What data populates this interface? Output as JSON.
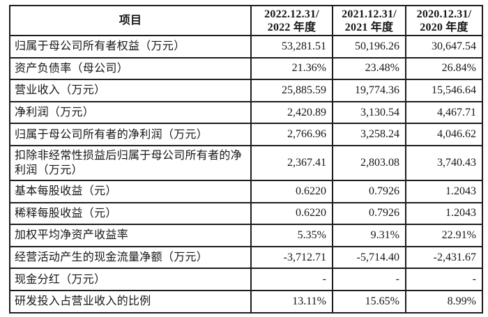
{
  "table": {
    "colors": {
      "border": "#1c1c1c",
      "text": "#161616",
      "background": "#ffffff"
    },
    "header": {
      "item_label": "项目",
      "periods": [
        {
          "line1": "2022.12.31/",
          "line2": "2022 年度"
        },
        {
          "line1": "2021.12.31/",
          "line2": "2021 年度"
        },
        {
          "line1": "2020.12.31/",
          "line2": "2020 年度"
        }
      ]
    },
    "rows": [
      {
        "label": "归属于母公司所有者权益（万元）",
        "values": [
          "53,281.51",
          "50,196.26",
          "30,647.54"
        ]
      },
      {
        "label": "资产负债率（母公司）",
        "values": [
          "21.36%",
          "23.48%",
          "26.84%"
        ]
      },
      {
        "label": "营业收入（万元）",
        "values": [
          "25,885.59",
          "19,774.36",
          "15,546.64"
        ]
      },
      {
        "label": "净利润（万元）",
        "values": [
          "2,420.89",
          "3,130.54",
          "4,467.71"
        ]
      },
      {
        "label": "归属于母公司所有者的净利润（万元）",
        "values": [
          "2,766.96",
          "3,258.24",
          "4,046.62"
        ]
      },
      {
        "label": "扣除非经常性损益后归属于母公司所有者的净利润（万元）",
        "values": [
          "2,367.41",
          "2,803.08",
          "3,740.43"
        ]
      },
      {
        "label": "基本每股收益（元）",
        "values": [
          "0.6220",
          "0.7926",
          "1.2043"
        ]
      },
      {
        "label": "稀释每股收益（元）",
        "values": [
          "0.6220",
          "0.7926",
          "1.2043"
        ]
      },
      {
        "label": "加权平均净资产收益率",
        "values": [
          "5.35%",
          "9.31%",
          "22.91%"
        ]
      },
      {
        "label": "经营活动产生的现金流量净额（万元）",
        "values": [
          "-3,712.71",
          "-5,714.40",
          "-2,431.67"
        ]
      },
      {
        "label": "现金分红（万元）",
        "values": [
          "-",
          "-",
          "-"
        ]
      },
      {
        "label": "研发投入占营业收入的比例",
        "values": [
          "13.11%",
          "15.65%",
          "8.99%"
        ]
      }
    ]
  }
}
